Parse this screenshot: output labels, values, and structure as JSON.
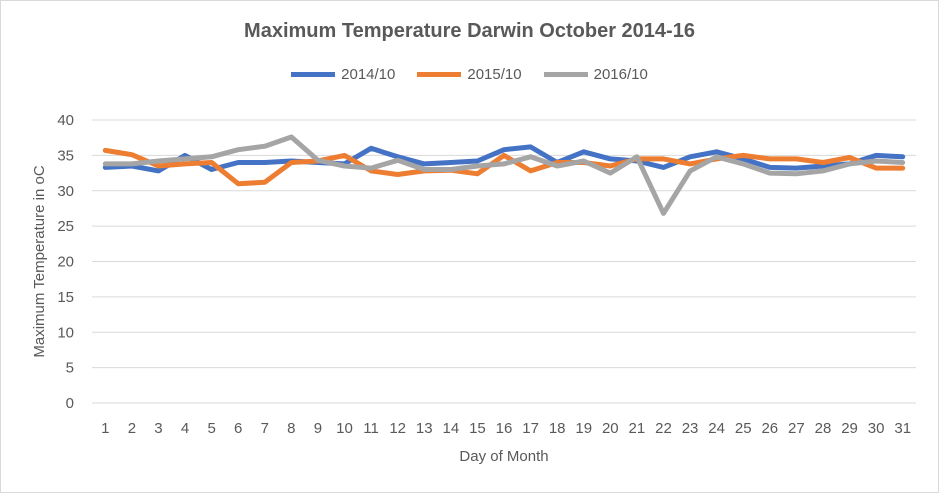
{
  "chart_data": {
    "type": "line",
    "title": "Maximum Temperature Darwin October 2014-16",
    "xlabel": "Day of Month",
    "ylabel": "Maximum Temperature in oC",
    "ylim": [
      0,
      40
    ],
    "yticks": [
      0,
      5,
      10,
      15,
      20,
      25,
      30,
      35,
      40
    ],
    "grid": true,
    "legend_position": "top",
    "x": [
      "1",
      "2",
      "3",
      "4",
      "5",
      "6",
      "7",
      "8",
      "9",
      "10",
      "11",
      "12",
      "13",
      "14",
      "15",
      "16",
      "17",
      "18",
      "19",
      "20",
      "21",
      "22",
      "23",
      "24",
      "25",
      "26",
      "27",
      "28",
      "29",
      "30",
      "31"
    ],
    "series": [
      {
        "name": "2014/10",
        "color": "#4472c4",
        "values": [
          33.3,
          33.5,
          32.8,
          35.0,
          33.0,
          34.0,
          34.0,
          34.2,
          34.0,
          33.8,
          36.0,
          34.8,
          33.8,
          34.0,
          34.2,
          35.8,
          36.2,
          34.0,
          35.5,
          34.5,
          34.2,
          33.3,
          34.8,
          35.5,
          34.5,
          33.3,
          33.2,
          33.5,
          33.8,
          35.0,
          34.8
        ]
      },
      {
        "name": "2015/10",
        "color": "#ed7d31",
        "values": [
          35.7,
          35.1,
          33.5,
          33.8,
          34.0,
          31.0,
          31.2,
          34.0,
          34.2,
          35.0,
          32.8,
          32.3,
          32.8,
          32.9,
          32.4,
          35.0,
          32.8,
          34.0,
          34.0,
          33.5,
          34.5,
          34.5,
          33.8,
          34.5,
          35.0,
          34.5,
          34.5,
          34.0,
          34.7,
          33.2,
          33.2
        ]
      },
      {
        "name": "2016/10",
        "color": "#a5a5a5",
        "values": [
          33.8,
          33.8,
          34.2,
          34.5,
          34.8,
          35.8,
          36.3,
          37.6,
          34.3,
          33.5,
          33.2,
          34.3,
          33.0,
          33.0,
          33.5,
          33.8,
          34.8,
          33.5,
          34.2,
          32.5,
          34.8,
          26.8,
          32.8,
          34.8,
          33.8,
          32.5,
          32.4,
          32.8,
          33.8,
          34.2,
          34.0
        ]
      }
    ]
  }
}
